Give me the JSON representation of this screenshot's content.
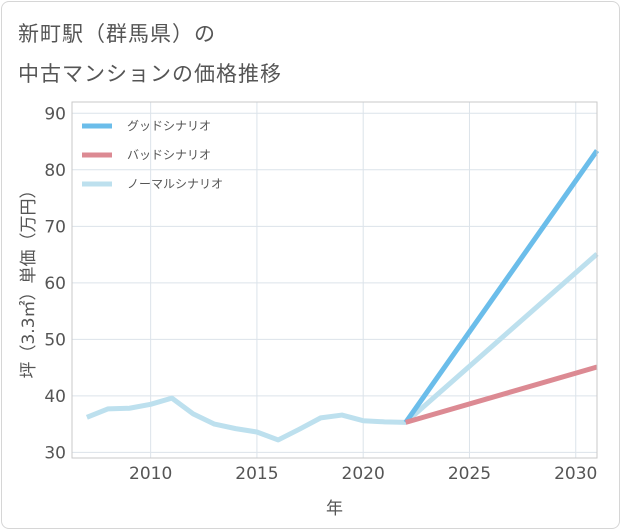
{
  "title": {
    "line1": "新町駅（群馬県）の",
    "line2": "中古マンションの価格推移"
  },
  "chart_data": {
    "type": "line",
    "xlabel": "年",
    "ylabel": "坪（3.3㎡）単価（万円）",
    "xlim": [
      2006.3,
      2031
    ],
    "ylim": [
      29,
      92
    ],
    "xticks": [
      2010,
      2015,
      2020,
      2025,
      2030
    ],
    "yticks": [
      30,
      40,
      50,
      60,
      70,
      80,
      90
    ],
    "xtick_labels": [
      "2010",
      "2015",
      "2020",
      "2025",
      "2030"
    ],
    "ytick_labels": [
      "30",
      "40",
      "50",
      "60",
      "70",
      "80",
      "90"
    ],
    "grid": true,
    "legend_position": "top-left",
    "series": [
      {
        "name": "グッドシナリオ",
        "color": "#6bbdea",
        "x": [
          2022,
          2031
        ],
        "y": [
          35.3,
          83.4
        ]
      },
      {
        "name": "バッドシナリオ",
        "color": "#dc8a93",
        "x": [
          2022,
          2031
        ],
        "y": [
          35.3,
          45.1
        ]
      },
      {
        "name": "ノーマルシナリオ",
        "color": "#bde0ee",
        "x": [
          2007,
          2008,
          2009,
          2010,
          2011,
          2012,
          2013,
          2014,
          2015,
          2016,
          2017,
          2018,
          2019,
          2020,
          2021,
          2022,
          2031
        ],
        "y": [
          36.2,
          37.7,
          37.8,
          38.5,
          39.6,
          36.8,
          35.0,
          34.2,
          33.6,
          32.2,
          34.1,
          36.1,
          36.6,
          35.6,
          35.4,
          35.3,
          65.1
        ]
      }
    ]
  }
}
